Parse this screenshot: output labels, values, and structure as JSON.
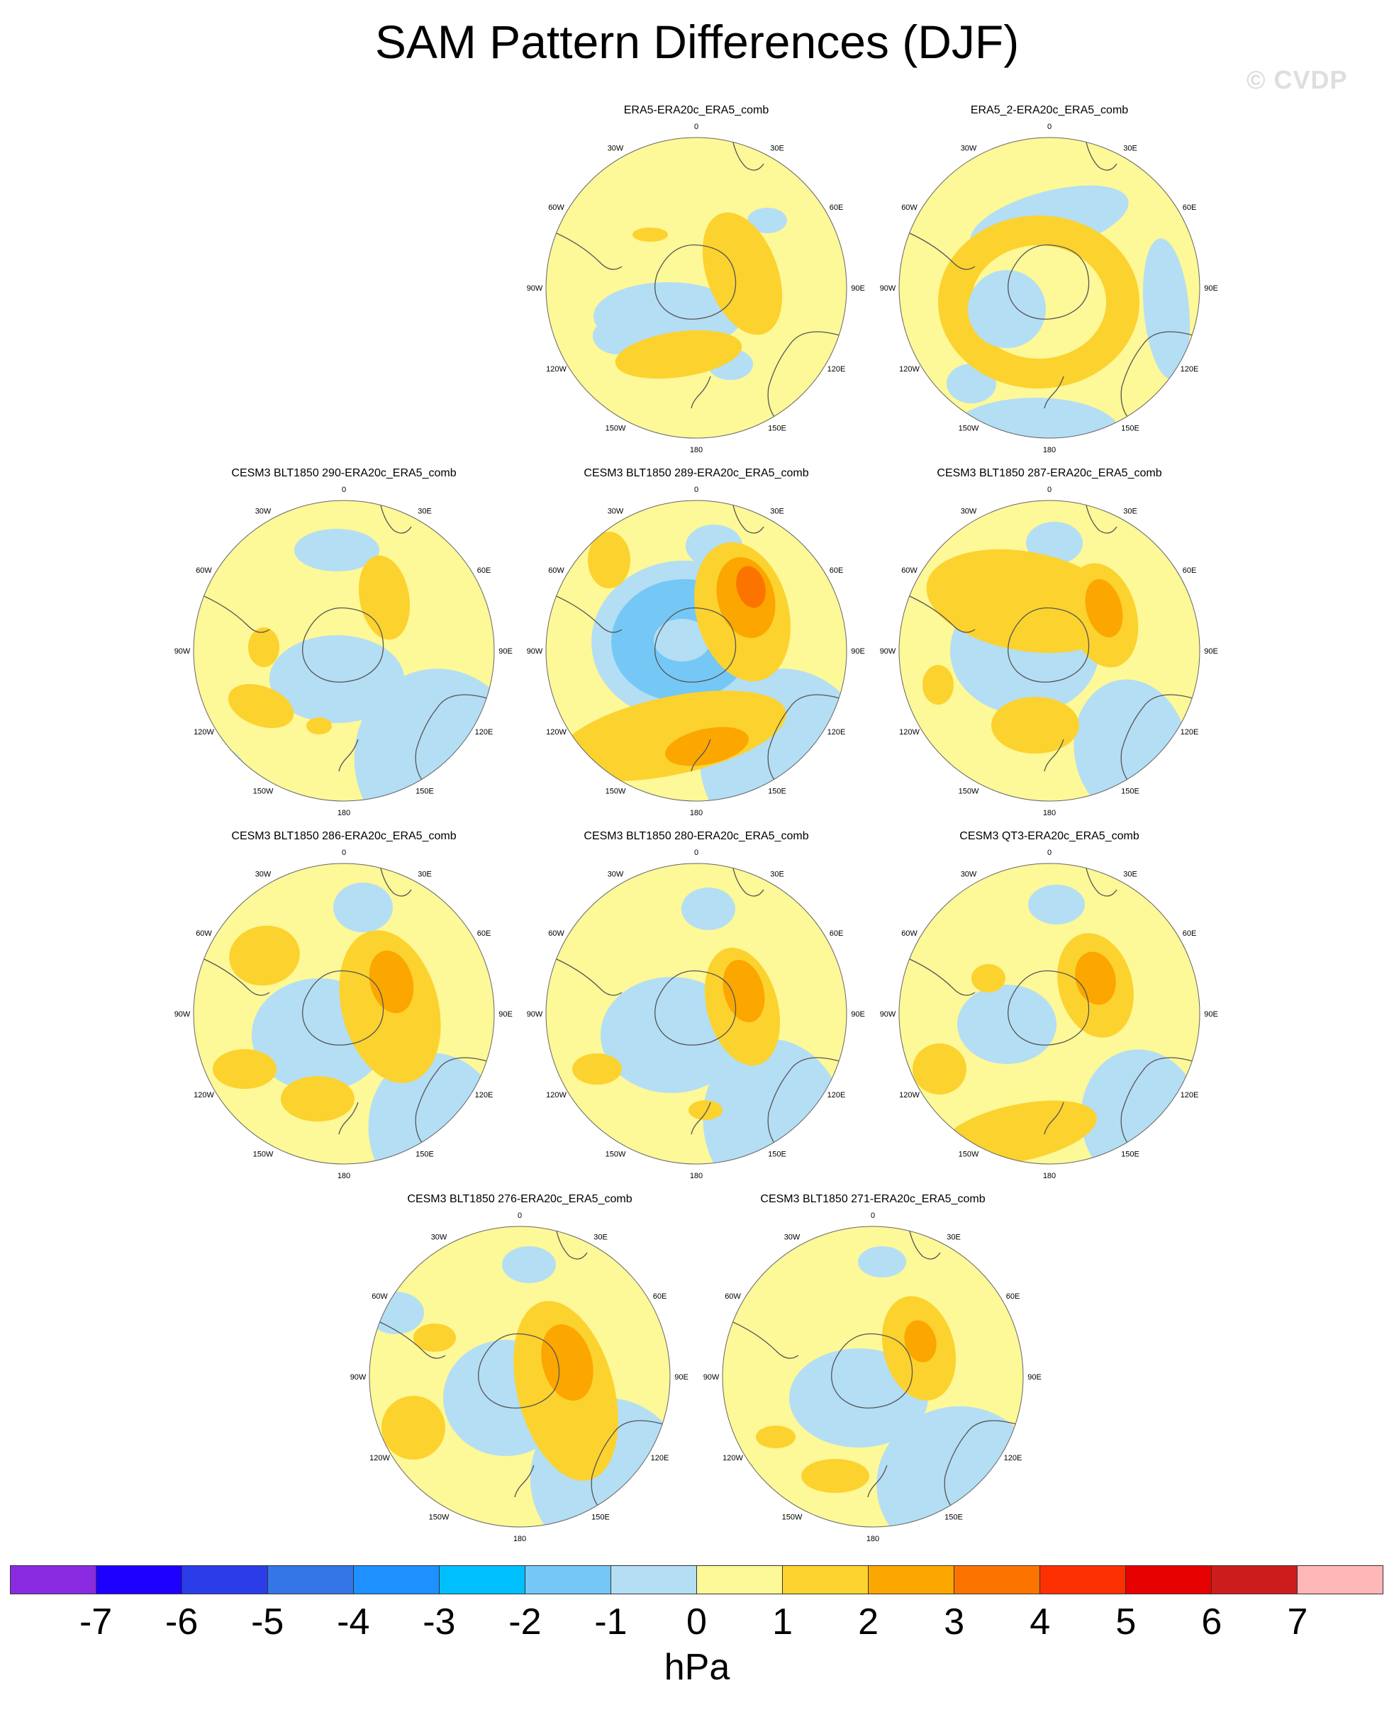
{
  "title": "SAM Pattern Differences (DJF)",
  "watermark": "© CVDP",
  "panels": [
    {
      "title": "ERA5-ERA20c_ERA5_comb"
    },
    {
      "title": "ERA5_2-ERA20c_ERA5_comb"
    },
    {
      "title": "CESM3 BLT1850 290-ERA20c_ERA5_comb"
    },
    {
      "title": "CESM3 BLT1850 289-ERA20c_ERA5_comb"
    },
    {
      "title": "CESM3 BLT1850 287-ERA20c_ERA5_comb"
    },
    {
      "title": "CESM3 BLT1850 286-ERA20c_ERA5_comb"
    },
    {
      "title": "CESM3 BLT1850 280-ERA20c_ERA5_comb"
    },
    {
      "title": "CESM3 QT3-ERA20c_ERA5_comb"
    },
    {
      "title": "CESM3 BLT1850 276-ERA20c_ERA5_comb"
    },
    {
      "title": "CESM3 BLT1850 271-ERA20c_ERA5_comb"
    }
  ],
  "longitude_labels": [
    "0",
    "30E",
    "60E",
    "90E",
    "120E",
    "150E",
    "180",
    "150W",
    "120W",
    "90W",
    "60W",
    "30W"
  ],
  "colorbar": {
    "colors": [
      "#8a2be2",
      "#1e00ff",
      "#2a3de8",
      "#3476e8",
      "#1e90ff",
      "#00bfff",
      "#75c8f5",
      "#b4def4",
      "#fdf898",
      "#fcd22e",
      "#fca600",
      "#fc7400",
      "#fc3000",
      "#e60000",
      "#cc1c1c",
      "#ffb6b6"
    ],
    "labels": [
      "-7",
      "-6",
      "-5",
      "-4",
      "-3",
      "-2",
      "-1",
      "0",
      "1",
      "2",
      "3",
      "4",
      "5",
      "6",
      "7"
    ],
    "unit": "hPa"
  }
}
